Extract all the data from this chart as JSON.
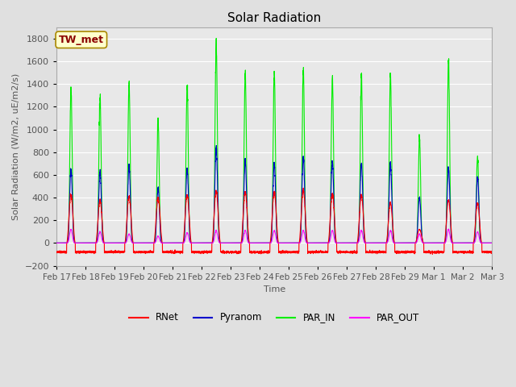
{
  "title": "Solar Radiation",
  "ylabel": "Solar Radiation (W/m2, uE/m2/s)",
  "xlabel": "Time",
  "ylim": [
    -200,
    1900
  ],
  "yticks": [
    -200,
    0,
    200,
    400,
    600,
    800,
    1000,
    1200,
    1400,
    1600,
    1800
  ],
  "background_color": "#e0e0e0",
  "plot_bg_color": "#e8e8e8",
  "grid_color": "white",
  "label_color": "#555555",
  "annotation_text": "TW_met",
  "annotation_bg": "#ffffcc",
  "annotation_fg": "#8b0000",
  "colors": {
    "RNet": "#ff0000",
    "Pyranom": "#0000cc",
    "PAR_IN": "#00ee00",
    "PAR_OUT": "#ff00ff"
  },
  "line_width": 0.8,
  "x_tick_labels": [
    "Feb 17",
    "Feb 18",
    "Feb 19",
    "Feb 20",
    "Feb 21",
    "Feb 22",
    "Feb 23",
    "Feb 24",
    "Feb 25",
    "Feb 26",
    "Feb 27",
    "Feb 28",
    "Feb 29",
    "Mar 1",
    "Mar 2",
    "Mar 3"
  ],
  "num_days": 15,
  "points_per_day": 288,
  "par_in_peaks": [
    1380,
    1300,
    1410,
    1080,
    1390,
    1760,
    1500,
    1490,
    1530,
    1460,
    1470,
    1480,
    930,
    1610,
    760
  ],
  "pyranom_peaks": [
    650,
    620,
    670,
    480,
    650,
    840,
    720,
    700,
    750,
    720,
    700,
    700,
    400,
    650,
    580
  ],
  "rnet_peaks": [
    420,
    370,
    410,
    400,
    420,
    450,
    450,
    450,
    460,
    430,
    420,
    350,
    120,
    380,
    350
  ],
  "par_out_peaks": [
    120,
    100,
    80,
    60,
    90,
    110,
    110,
    110,
    110,
    110,
    110,
    110,
    80,
    120,
    100
  ],
  "rnet_night": -80,
  "day_start": 0.35,
  "day_end": 0.65,
  "par_narrow_exp": 3.0,
  "rnet_flat": true
}
